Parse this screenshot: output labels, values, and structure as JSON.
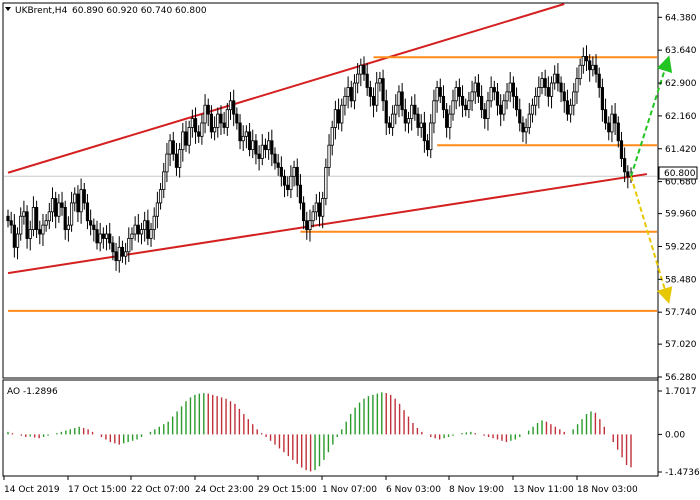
{
  "chart_data": {
    "type": "candlestick",
    "symbol_header": "UKBrent,H4",
    "ohlc_header": "60.890 60.920 60.740 60.800",
    "current_price_label": "60.800",
    "price_axis": {
      "ticks": [
        "64.380",
        "63.640",
        "62.900",
        "62.160",
        "61.420",
        "60.680",
        "59.960",
        "59.220",
        "58.480",
        "57.740",
        "57.020",
        "56.280"
      ],
      "range": [
        56.28,
        64.68
      ]
    },
    "time_axis": {
      "ticks": [
        "14 Oct 2019",
        "17 Oct 15:00",
        "22 Oct 07:00",
        "24 Oct 23:00",
        "29 Oct 15:00",
        "1 Nov 07:00",
        "6 Nov 03:00",
        "8 Nov 19:00",
        "13 Nov 11:00",
        "18 Nov 03:00"
      ]
    },
    "horizontal_levels": [
      63.48,
      61.5,
      59.55,
      57.77
    ],
    "channel_upper": [
      [
        0,
        60.88
      ],
      [
        175,
        64.68
      ]
    ],
    "channel_lower": [
      [
        0,
        58.62
      ],
      [
        201,
        60.85
      ]
    ],
    "forecast_up": {
      "from": [
        196,
        60.8
      ],
      "to": [
        201,
        63.35
      ],
      "color": "#22c522"
    },
    "forecast_down": {
      "from": [
        196,
        60.8
      ],
      "to": [
        201,
        58.1
      ],
      "color": "#e6c700"
    },
    "candles_close": [
      59.8,
      59.7,
      59.2,
      59.5,
      59.9,
      60.0,
      59.4,
      59.6,
      60.1,
      59.6,
      59.5,
      59.7,
      59.8,
      60.0,
      60.3,
      59.9,
      60.2,
      60.1,
      59.6,
      59.7,
      60.2,
      60.4,
      60.0,
      60.5,
      60.2,
      59.8,
      59.7,
      59.6,
      59.3,
      59.5,
      59.4,
      59.5,
      59.3,
      59.1,
      58.9,
      59.2,
      59.0,
      59.1,
      59.4,
      59.5,
      59.7,
      59.5,
      59.6,
      59.8,
      59.4,
      59.6,
      59.9,
      60.2,
      60.5,
      60.9,
      61.3,
      61.6,
      61.3,
      61.0,
      61.4,
      61.8,
      61.5,
      61.9,
      62.1,
      61.8,
      61.7,
      62.0,
      62.4,
      62.2,
      61.8,
      61.9,
      62.2,
      62.0,
      61.9,
      62.3,
      62.5,
      62.2,
      62.0,
      61.6,
      61.7,
      61.8,
      61.4,
      61.6,
      61.3,
      61.2,
      61.5,
      61.4,
      61.6,
      61.3,
      61.1,
      61.0,
      60.8,
      60.6,
      60.5,
      60.8,
      61.0,
      60.6,
      60.2,
      59.8,
      59.6,
      59.8,
      60.0,
      60.2,
      59.9,
      60.3,
      61.0,
      61.5,
      61.9,
      62.3,
      62.0,
      62.4,
      62.6,
      62.8,
      62.5,
      62.9,
      63.1,
      63.3,
      63.1,
      62.8,
      62.6,
      62.4,
      62.9,
      63.0,
      62.5,
      62.0,
      61.9,
      62.2,
      62.4,
      62.7,
      62.3,
      62.0,
      62.1,
      62.4,
      62.2,
      61.9,
      62.0,
      61.6,
      61.4,
      62.0,
      62.5,
      62.8,
      62.6,
      62.3,
      61.9,
      62.2,
      62.5,
      62.8,
      62.6,
      62.4,
      62.3,
      62.5,
      62.7,
      62.9,
      62.6,
      62.3,
      62.1,
      62.5,
      62.8,
      62.7,
      62.4,
      62.2,
      62.5,
      62.7,
      62.9,
      62.6,
      62.3,
      62.0,
      61.8,
      61.9,
      62.2,
      62.4,
      62.6,
      62.8,
      63.0,
      62.8,
      62.6,
      62.9,
      63.1,
      62.9,
      62.7,
      62.5,
      62.2,
      62.4,
      62.7,
      63.0,
      63.3,
      63.5,
      63.4,
      63.2,
      63.3,
      63.1,
      62.8,
      62.3,
      62.0,
      61.8,
      62.2,
      62.0,
      61.6,
      61.2,
      60.9,
      60.8,
      60.8
    ],
    "oscillator": {
      "name": "AO",
      "header": "AO -1.2896",
      "ticks": [
        "1.7017",
        "0.00",
        "-1.4736"
      ],
      "range": [
        -1.4736,
        1.7017
      ],
      "values": [
        0.1,
        0.05,
        0.0,
        -0.05,
        -0.1,
        -0.08,
        -0.12,
        -0.15,
        -0.1,
        -0.05,
        0.0,
        0.05,
        0.1,
        0.15,
        0.2,
        0.25,
        0.3,
        0.25,
        0.2,
        0.1,
        0.0,
        -0.1,
        -0.2,
        -0.3,
        -0.35,
        -0.4,
        -0.35,
        -0.3,
        -0.25,
        -0.2,
        -0.1,
        0.0,
        0.1,
        0.2,
        0.3,
        0.4,
        0.5,
        0.7,
        0.9,
        1.1,
        1.3,
        1.45,
        1.55,
        1.6,
        1.62,
        1.6,
        1.55,
        1.5,
        1.45,
        1.4,
        1.3,
        1.2,
        1.0,
        0.8,
        0.6,
        0.4,
        0.2,
        0.05,
        -0.1,
        -0.25,
        -0.4,
        -0.55,
        -0.7,
        -0.85,
        -1.0,
        -1.15,
        -1.3,
        -1.4,
        -1.45,
        -1.4,
        -1.25,
        -1.0,
        -0.7,
        -0.4,
        -0.1,
        0.2,
        0.5,
        0.8,
        1.05,
        1.25,
        1.4,
        1.5,
        1.55,
        1.6,
        1.65,
        1.62,
        1.55,
        1.4,
        1.2,
        0.95,
        0.7,
        0.45,
        0.25,
        0.1,
        0.0,
        -0.1,
        -0.15,
        -0.2,
        -0.15,
        -0.1,
        -0.05,
        0.0,
        0.05,
        0.08,
        0.1,
        0.05,
        0.0,
        -0.05,
        -0.1,
        -0.15,
        -0.2,
        -0.25,
        -0.3,
        -0.25,
        -0.2,
        -0.1,
        0.0,
        0.15,
        0.3,
        0.45,
        0.55,
        0.5,
        0.4,
        0.3,
        0.2,
        0.1,
        0.0,
        0.2,
        0.4,
        0.6,
        0.8,
        0.9,
        0.85,
        0.6,
        0.3,
        0.0,
        -0.3,
        -0.6,
        -0.9,
        -1.2,
        -1.29
      ]
    },
    "colors": {
      "candle": "#000000",
      "channel": "#d42020",
      "level": "#ff8c1a",
      "ao_up": "#2a9a2a",
      "ao_down": "#c0303a",
      "grid": "#c8c8c8"
    }
  }
}
